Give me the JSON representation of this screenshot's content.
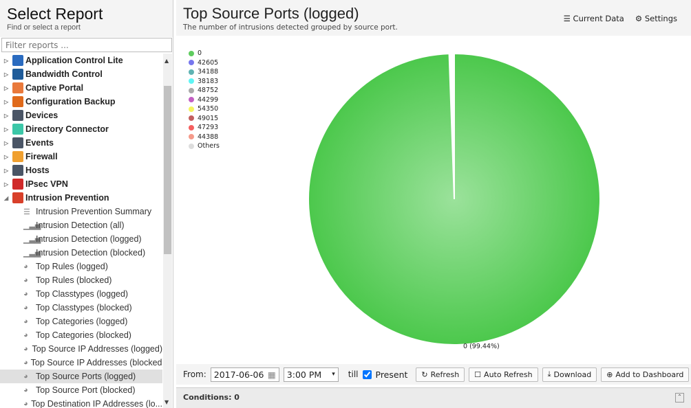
{
  "left": {
    "title": "Select Report",
    "subtitle": "Find or select a report",
    "filter_placeholder": "Filter reports ...",
    "categories": [
      {
        "label": "Application Control Lite",
        "color": "#2a6bc0"
      },
      {
        "label": "Bandwidth Control",
        "color": "#1f5c9a"
      },
      {
        "label": "Captive Portal",
        "color": "#e9793b"
      },
      {
        "label": "Configuration Backup",
        "color": "#e06a1b"
      },
      {
        "label": "Devices",
        "color": "#4a5566"
      },
      {
        "label": "Directory Connector",
        "color": "#3cc7a8"
      },
      {
        "label": "Events",
        "color": "#4a5566"
      },
      {
        "label": "Firewall",
        "color": "#f0a030"
      },
      {
        "label": "Hosts",
        "color": "#4a5566"
      },
      {
        "label": "IPsec VPN",
        "color": "#d02a2a"
      },
      {
        "label": "Intrusion Prevention",
        "color": "#d8402a",
        "expanded": true
      }
    ],
    "items": [
      {
        "label": "Intrusion Prevention Summary",
        "icon": "text-icon"
      },
      {
        "label": "Intrusion Detection (all)",
        "icon": "bar-chart-icon"
      },
      {
        "label": "Intrusion Detection (logged)",
        "icon": "bar-chart-icon"
      },
      {
        "label": "Intrusion Detection (blocked)",
        "icon": "bar-chart-icon"
      },
      {
        "label": "Top Rules (logged)",
        "icon": "pie-chart-icon"
      },
      {
        "label": "Top Rules (blocked)",
        "icon": "pie-chart-icon"
      },
      {
        "label": "Top Classtypes (logged)",
        "icon": "pie-chart-icon"
      },
      {
        "label": "Top Classtypes (blocked)",
        "icon": "pie-chart-icon"
      },
      {
        "label": "Top Categories (logged)",
        "icon": "pie-chart-icon"
      },
      {
        "label": "Top Categories (blocked)",
        "icon": "pie-chart-icon"
      },
      {
        "label": "Top Source IP Addresses (logged)",
        "icon": "pie-chart-icon"
      },
      {
        "label": "Top Source IP Addresses (blocked)",
        "icon": "pie-chart-icon"
      },
      {
        "label": "Top Source Ports (logged)",
        "icon": "pie-chart-icon",
        "selected": true
      },
      {
        "label": "Top Source Port (blocked)",
        "icon": "pie-chart-icon"
      },
      {
        "label": "Top Destination IP Addresses (lo...",
        "icon": "pie-chart-icon"
      }
    ]
  },
  "report": {
    "title": "Top Source Ports (logged)",
    "subtitle": "The number of intrusions detected grouped by source port.",
    "current_data": "Current Data",
    "settings": "Settings"
  },
  "chart_data": {
    "type": "pie",
    "title": "",
    "legend_position": "top-left",
    "categories": [
      "0",
      "42605",
      "34188",
      "38183",
      "48752",
      "44299",
      "54350",
      "49015",
      "47293",
      "44388",
      "Others"
    ],
    "colors": [
      "#5fcc5f",
      "#7777ee",
      "#5fb3b3",
      "#5ff5f5",
      "#aaaaaa",
      "#c35fc3",
      "#f5f55f",
      "#c35f5f",
      "#f55f5f",
      "#f59a8a",
      "#dddddd"
    ],
    "values_percent": [
      99.44,
      null,
      null,
      null,
      null,
      null,
      null,
      null,
      null,
      null,
      null
    ],
    "data_label": "0 (99.44%)"
  },
  "toolbar": {
    "from_label": "From:",
    "date": "2017-06-06",
    "time": "3:00 PM",
    "till_label": "till",
    "present_label": "Present",
    "present_checked": true,
    "refresh": "Refresh",
    "auto_refresh": "Auto Refresh",
    "download": "Download",
    "add_dashboard": "Add to Dashboard"
  },
  "conditions": "Conditions: 0"
}
